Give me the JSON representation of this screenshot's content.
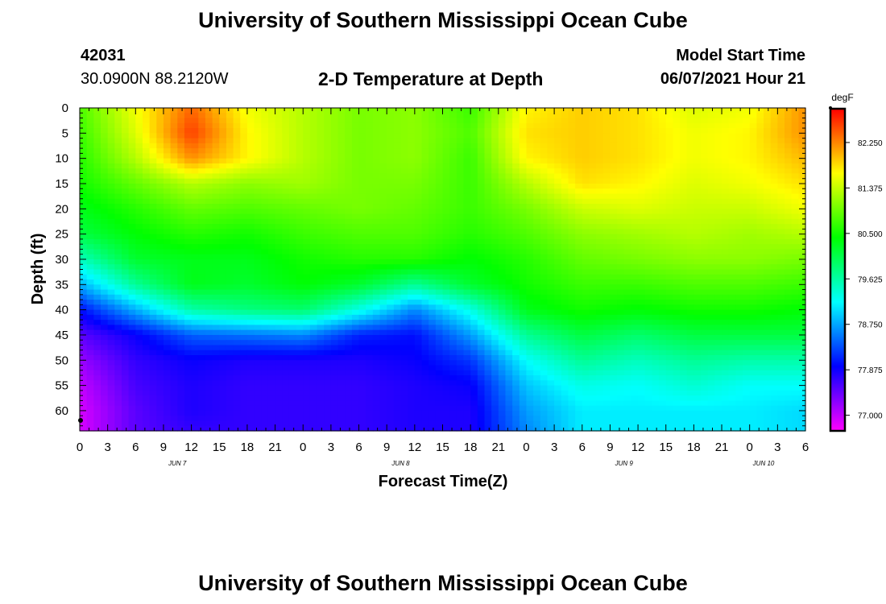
{
  "header": {
    "title": "University of Southern Mississippi Ocean Cube",
    "station_id": "42031",
    "location": "30.0900N  88.2120W",
    "subtitle": "2-D Temperature at Depth",
    "model_start_label": "Model Start Time",
    "model_start_value": "06/07/2021 Hour 21"
  },
  "footer": {
    "title": "University of Southern Mississippi Ocean Cube"
  },
  "chart_data": {
    "type": "heatmap",
    "title": "2-D Temperature at Depth",
    "xlabel": "Forecast Time(Z)",
    "ylabel": "Depth (ft)",
    "x_tick_labels": [
      "0",
      "3",
      "6",
      "9",
      "12",
      "15",
      "18",
      "21",
      "0",
      "3",
      "6",
      "9",
      "12",
      "15",
      "18",
      "21",
      "0",
      "3",
      "6",
      "9",
      "12",
      "15",
      "18",
      "21",
      "0",
      "3",
      "6"
    ],
    "x_date_labels": [
      "JUN 7",
      "JUN 8",
      "JUN 9",
      "JUN 10"
    ],
    "y_tick_labels": [
      "0",
      "5",
      "10",
      "15",
      "20",
      "25",
      "30",
      "35",
      "40",
      "45",
      "50",
      "55",
      "60"
    ],
    "xlim_hours": [
      0,
      78
    ],
    "ylim_ft": [
      0,
      64
    ],
    "colorbar": {
      "unit": "degF",
      "tick_labels": [
        "82.250",
        "81.375",
        "80.500",
        "79.625",
        "78.750",
        "77.875",
        "77.000"
      ],
      "range": [
        76.7,
        82.9
      ]
    },
    "x_hours": [
      0,
      6,
      12,
      18,
      24,
      30,
      36,
      42,
      48,
      54,
      60,
      66,
      72,
      78
    ],
    "depths_ft": [
      0,
      5,
      10,
      15,
      20,
      25,
      30,
      35,
      40,
      45,
      50,
      55,
      60,
      64
    ],
    "values_degF": [
      [
        80.8,
        81.6,
        82.4,
        81.6,
        81.3,
        81.0,
        81.1,
        80.7,
        81.7,
        81.9,
        81.8,
        81.5,
        81.6,
        82.2
      ],
      [
        80.7,
        81.5,
        82.6,
        81.7,
        81.3,
        81.0,
        81.1,
        80.8,
        81.8,
        81.9,
        81.8,
        81.6,
        81.7,
        82.2
      ],
      [
        80.6,
        81.3,
        82.2,
        81.7,
        81.3,
        81.0,
        81.1,
        80.7,
        81.7,
        81.9,
        81.8,
        81.6,
        81.7,
        82.0
      ],
      [
        80.5,
        80.9,
        81.3,
        81.1,
        81.2,
        81.0,
        81.0,
        80.7,
        81.3,
        81.8,
        81.7,
        81.5,
        81.6,
        81.8
      ],
      [
        80.3,
        80.6,
        80.9,
        80.8,
        80.9,
        81.0,
        80.9,
        80.7,
        81.0,
        81.4,
        81.5,
        81.4,
        81.4,
        81.6
      ],
      [
        80.1,
        80.4,
        80.6,
        80.5,
        80.7,
        80.8,
        80.8,
        80.6,
        80.8,
        81.1,
        81.2,
        81.3,
        81.2,
        81.3
      ],
      [
        79.5,
        80.2,
        80.3,
        80.3,
        80.5,
        80.6,
        80.6,
        80.4,
        80.6,
        80.9,
        81.0,
        81.1,
        81.1,
        81.0
      ],
      [
        78.8,
        79.7,
        80.3,
        80.2,
        80.4,
        80.2,
        79.7,
        80.2,
        80.5,
        80.7,
        80.7,
        80.8,
        80.8,
        80.7
      ],
      [
        78.0,
        78.8,
        79.6,
        79.8,
        79.9,
        79.3,
        78.6,
        79.3,
        80.3,
        80.5,
        80.4,
        80.5,
        80.5,
        80.4
      ],
      [
        77.5,
        77.9,
        78.4,
        78.5,
        78.6,
        78.1,
        78.0,
        78.7,
        79.7,
        80.1,
        79.9,
        80.1,
        80.1,
        80.1
      ],
      [
        77.2,
        77.7,
        77.9,
        77.8,
        77.8,
        77.8,
        77.9,
        78.2,
        79.2,
        79.7,
        79.5,
        79.7,
        79.6,
        79.6
      ],
      [
        77.0,
        77.6,
        77.8,
        77.7,
        77.7,
        77.7,
        77.8,
        77.9,
        78.9,
        79.3,
        79.2,
        79.4,
        79.2,
        79.2
      ],
      [
        76.9,
        77.5,
        77.8,
        77.7,
        77.7,
        77.7,
        77.8,
        77.8,
        78.7,
        79.1,
        79.1,
        79.1,
        79.1,
        79.0
      ],
      [
        76.9,
        77.5,
        77.7,
        77.7,
        77.7,
        77.7,
        77.8,
        77.8,
        78.6,
        79.1,
        79.1,
        79.1,
        79.1,
        79.0
      ]
    ]
  }
}
